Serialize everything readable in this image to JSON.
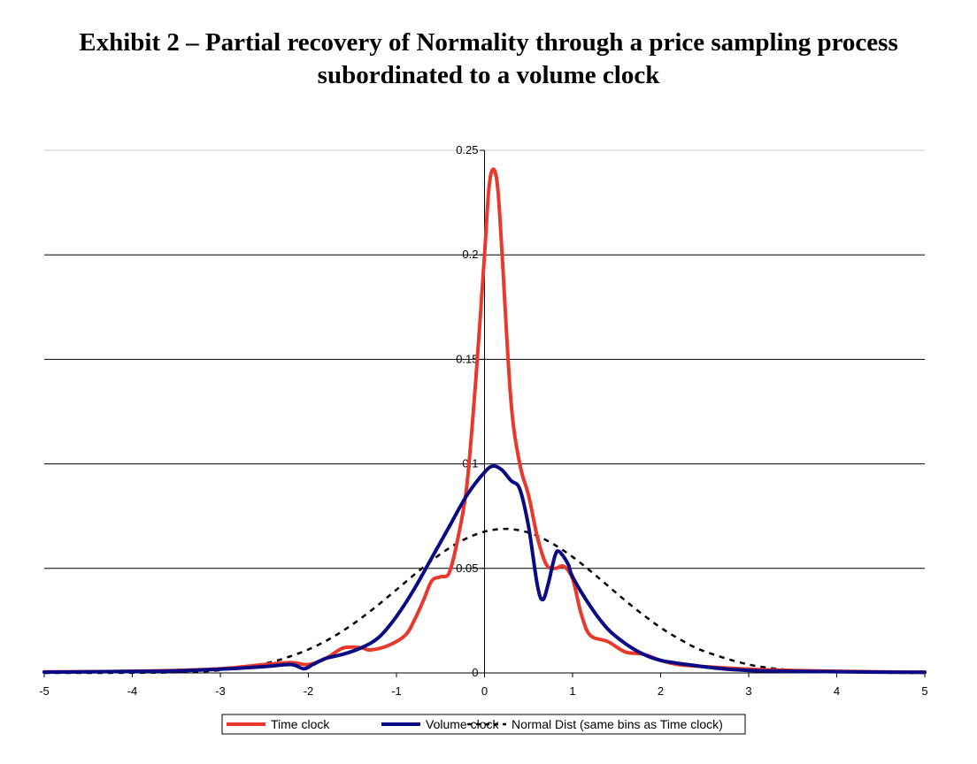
{
  "title": {
    "line1": "Exhibit 2 – Partial recovery of Normality through a price sampling process",
    "line2": "subordinated to a volume clock"
  },
  "chart_data": {
    "type": "line",
    "title": "Exhibit 2 – Partial recovery of Normality through a price sampling process subordinated to a volume clock",
    "xlim": [
      -5,
      5
    ],
    "ylim": [
      0,
      0.25
    ],
    "x_ticks": [
      "-5",
      "-4",
      "-3",
      "-2",
      "-1",
      "0",
      "1",
      "2",
      "3",
      "4",
      "5"
    ],
    "y_ticks": [
      "0",
      "0.05",
      "0.1",
      "0.15",
      "0.2",
      "0.25"
    ],
    "grid": "horizontal",
    "legend_position": "bottom",
    "series": [
      {
        "name": "Time clock",
        "color": "#e8392b",
        "style": "solid",
        "points": [
          [
            -5,
            0.0005
          ],
          [
            -4.5,
            0.0006
          ],
          [
            -4,
            0.0008
          ],
          [
            -3.5,
            0.0012
          ],
          [
            -3,
            0.002
          ],
          [
            -2.5,
            0.004
          ],
          [
            -2.2,
            0.005
          ],
          [
            -2,
            0.004
          ],
          [
            -1.8,
            0.007
          ],
          [
            -1.6,
            0.012
          ],
          [
            -1.4,
            0.012
          ],
          [
            -1.3,
            0.011
          ],
          [
            -1.1,
            0.013
          ],
          [
            -0.9,
            0.018
          ],
          [
            -0.8,
            0.025
          ],
          [
            -0.7,
            0.034
          ],
          [
            -0.6,
            0.044
          ],
          [
            -0.5,
            0.046
          ],
          [
            -0.4,
            0.048
          ],
          [
            -0.3,
            0.065
          ],
          [
            -0.2,
            0.09
          ],
          [
            -0.1,
            0.14
          ],
          [
            0,
            0.2
          ],
          [
            0.05,
            0.232
          ],
          [
            0.1,
            0.241
          ],
          [
            0.15,
            0.232
          ],
          [
            0.2,
            0.2
          ],
          [
            0.3,
            0.13
          ],
          [
            0.4,
            0.1
          ],
          [
            0.5,
            0.085
          ],
          [
            0.6,
            0.065
          ],
          [
            0.7,
            0.052
          ],
          [
            0.8,
            0.05
          ],
          [
            0.9,
            0.051
          ],
          [
            1,
            0.045
          ],
          [
            1.1,
            0.028
          ],
          [
            1.2,
            0.018
          ],
          [
            1.4,
            0.015
          ],
          [
            1.6,
            0.01
          ],
          [
            1.8,
            0.009
          ],
          [
            2,
            0.006
          ],
          [
            2.2,
            0.004
          ],
          [
            2.5,
            0.003
          ],
          [
            3,
            0.0018
          ],
          [
            3.5,
            0.0012
          ],
          [
            4,
            0.0008
          ],
          [
            4.5,
            0.0005
          ],
          [
            5,
            0.0004
          ]
        ]
      },
      {
        "name": "Volume clock",
        "color": "#0a0a85",
        "style": "solid",
        "points": [
          [
            -5,
            0.0004
          ],
          [
            -4.5,
            0.0005
          ],
          [
            -4,
            0.0007
          ],
          [
            -3.5,
            0.001
          ],
          [
            -3,
            0.0018
          ],
          [
            -2.5,
            0.003
          ],
          [
            -2.2,
            0.004
          ],
          [
            -2.05,
            0.002
          ],
          [
            -1.95,
            0.004
          ],
          [
            -1.8,
            0.007
          ],
          [
            -1.6,
            0.009
          ],
          [
            -1.4,
            0.012
          ],
          [
            -1.2,
            0.017
          ],
          [
            -1,
            0.027
          ],
          [
            -0.8,
            0.04
          ],
          [
            -0.6,
            0.055
          ],
          [
            -0.4,
            0.07
          ],
          [
            -0.2,
            0.085
          ],
          [
            0,
            0.096
          ],
          [
            0.1,
            0.099
          ],
          [
            0.2,
            0.097
          ],
          [
            0.3,
            0.092
          ],
          [
            0.4,
            0.088
          ],
          [
            0.5,
            0.07
          ],
          [
            0.6,
            0.042
          ],
          [
            0.66,
            0.035
          ],
          [
            0.72,
            0.042
          ],
          [
            0.8,
            0.056
          ],
          [
            0.85,
            0.058
          ],
          [
            0.95,
            0.052
          ],
          [
            1,
            0.046
          ],
          [
            1.2,
            0.032
          ],
          [
            1.4,
            0.021
          ],
          [
            1.6,
            0.014
          ],
          [
            1.8,
            0.009
          ],
          [
            2,
            0.006
          ],
          [
            2.3,
            0.004
          ],
          [
            2.7,
            0.002
          ],
          [
            3,
            0.0012
          ],
          [
            3.5,
            0.0008
          ],
          [
            4,
            0.0006
          ],
          [
            4.5,
            0.0004
          ],
          [
            5,
            0.0003
          ]
        ]
      },
      {
        "name": "Normal Dist (same bins as Time clock)",
        "color": "#000000",
        "style": "dashed",
        "points": [
          [
            -5,
            0
          ],
          [
            -4.5,
            0
          ],
          [
            -4,
            0.0001
          ],
          [
            -3.5,
            0.0003
          ],
          [
            -3,
            0.0013
          ],
          [
            -2.5,
            0.0045
          ],
          [
            -2.25,
            0.0073
          ],
          [
            -2,
            0.0112
          ],
          [
            -1.75,
            0.0165
          ],
          [
            -1.5,
            0.0232
          ],
          [
            -1.25,
            0.0311
          ],
          [
            -1,
            0.0398
          ],
          [
            -0.75,
            0.0487
          ],
          [
            -0.5,
            0.0569
          ],
          [
            -0.25,
            0.0634
          ],
          [
            0,
            0.0676
          ],
          [
            0.25,
            0.0689
          ],
          [
            0.5,
            0.0671
          ],
          [
            0.75,
            0.0624
          ],
          [
            1,
            0.0555
          ],
          [
            1.25,
            0.0471
          ],
          [
            1.5,
            0.0381
          ],
          [
            1.75,
            0.0295
          ],
          [
            2,
            0.0217
          ],
          [
            2.25,
            0.0153
          ],
          [
            2.5,
            0.0103
          ],
          [
            3,
            0.004
          ],
          [
            3.5,
            0.0013
          ],
          [
            4,
            0.0004
          ],
          [
            4.5,
            0.0001
          ],
          [
            5,
            0
          ]
        ]
      }
    ]
  }
}
